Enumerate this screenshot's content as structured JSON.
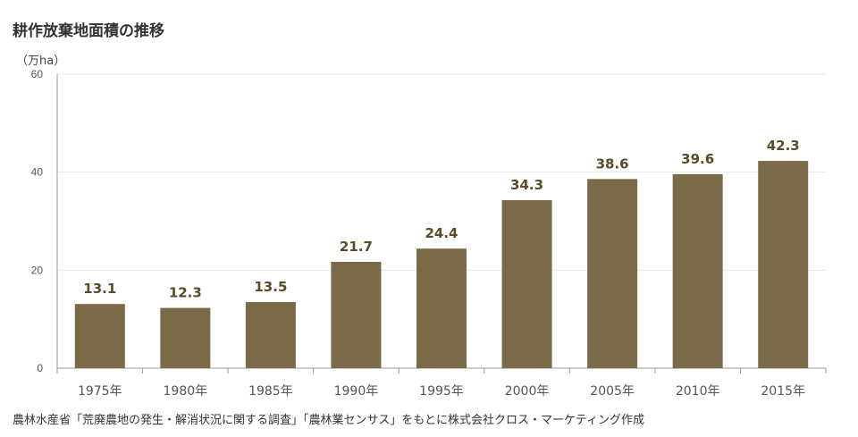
{
  "chart_data": {
    "type": "bar",
    "title": "耕作放棄地面積の推移",
    "ylabel": "（万ha）",
    "xlabel": "",
    "categories": [
      "1975年",
      "1980年",
      "1985年",
      "1990年",
      "1995年",
      "2000年",
      "2005年",
      "2010年",
      "2015年"
    ],
    "values": [
      13.1,
      12.3,
      13.5,
      21.7,
      24.4,
      34.3,
      38.6,
      39.6,
      42.3
    ],
    "value_labels": [
      "13.1",
      "12.3",
      "13.5",
      "21.7",
      "24.4",
      "34.3",
      "38.6",
      "39.6",
      "42.3"
    ],
    "ylim": [
      0,
      60
    ],
    "yticks": [
      "0",
      "20",
      "40",
      "60"
    ],
    "grid": true,
    "legend": "none",
    "bar_color": "#7b6a48",
    "label_color": "#5a4a26",
    "source": "農林水産省「荒廃農地の発生・解消状況に関する調査」「農林業センサス」をもとに株式会社クロス・マーケティング作成"
  }
}
